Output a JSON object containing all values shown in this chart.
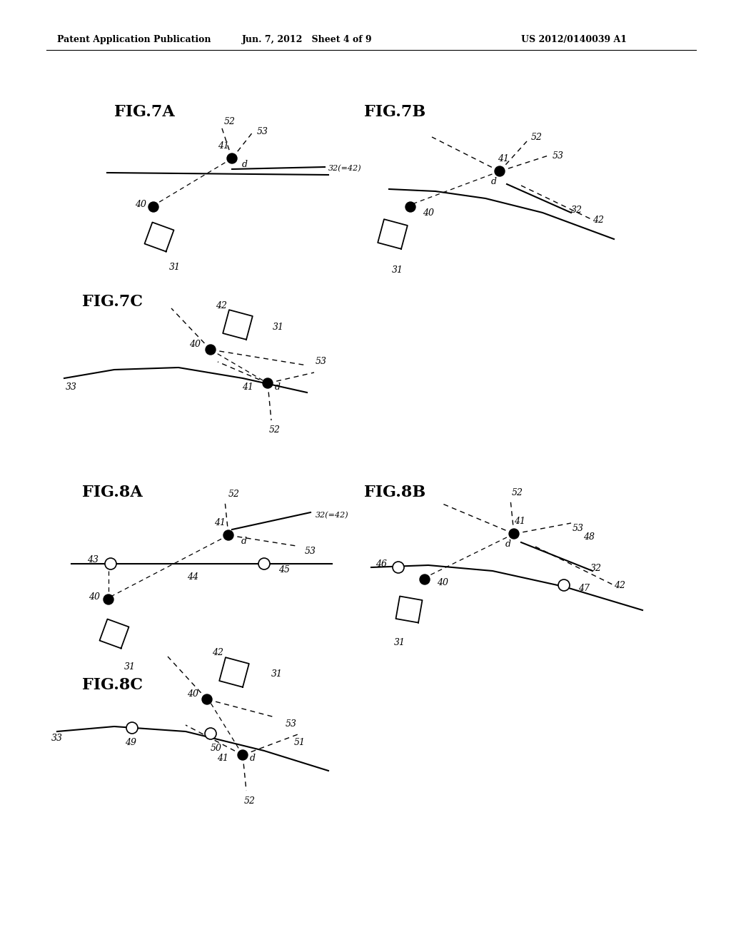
{
  "header_left": "Patent Application Publication",
  "header_mid": "Jun. 7, 2012   Sheet 4 of 9",
  "header_right": "US 2012/0140039 A1",
  "background": "#ffffff"
}
